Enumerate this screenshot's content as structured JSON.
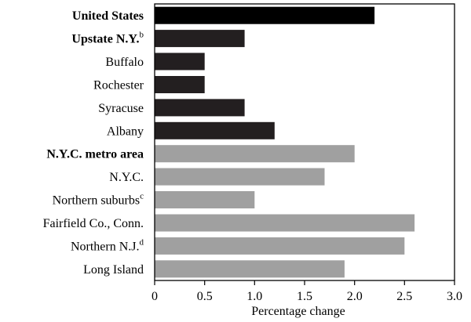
{
  "chart_data": {
    "type": "bar",
    "orientation": "horizontal",
    "xlabel": "Percentage change",
    "ylabel": "",
    "title": "",
    "xlim": [
      0,
      3.0
    ],
    "x_ticks": [
      "0",
      "0.5",
      "1.0",
      "1.5",
      "2.0",
      "2.5",
      "3.0"
    ],
    "grid": false,
    "categories": [
      {
        "label": "United States",
        "sup": "",
        "bold": true,
        "value": 2.2,
        "group": "us"
      },
      {
        "label": "Upstate N.Y.",
        "sup": "b",
        "bold": true,
        "value": 0.9,
        "group": "upstate"
      },
      {
        "label": "Buffalo",
        "sup": "",
        "bold": false,
        "value": 0.5,
        "group": "upstate"
      },
      {
        "label": "Rochester",
        "sup": "",
        "bold": false,
        "value": 0.5,
        "group": "upstate"
      },
      {
        "label": "Syracuse",
        "sup": "",
        "bold": false,
        "value": 0.9,
        "group": "upstate"
      },
      {
        "label": "Albany",
        "sup": "",
        "bold": false,
        "value": 1.2,
        "group": "upstate"
      },
      {
        "label": "N.Y.C. metro area",
        "sup": "",
        "bold": true,
        "value": 2.0,
        "group": "nyc"
      },
      {
        "label": "N.Y.C.",
        "sup": "",
        "bold": false,
        "value": 1.7,
        "group": "nyc"
      },
      {
        "label": "Northern suburbs",
        "sup": "c",
        "bold": false,
        "value": 1.0,
        "group": "nyc"
      },
      {
        "label": "Fairfield Co., Conn.",
        "sup": "",
        "bold": false,
        "value": 2.6,
        "group": "nyc"
      },
      {
        "label": "Northern N.J.",
        "sup": "d",
        "bold": false,
        "value": 2.5,
        "group": "nyc"
      },
      {
        "label": "Long Island",
        "sup": "",
        "bold": false,
        "value": 1.9,
        "group": "nyc"
      }
    ],
    "colors": {
      "us": "#000000",
      "upstate": "#231f20",
      "nyc": "#a0a0a0"
    }
  }
}
